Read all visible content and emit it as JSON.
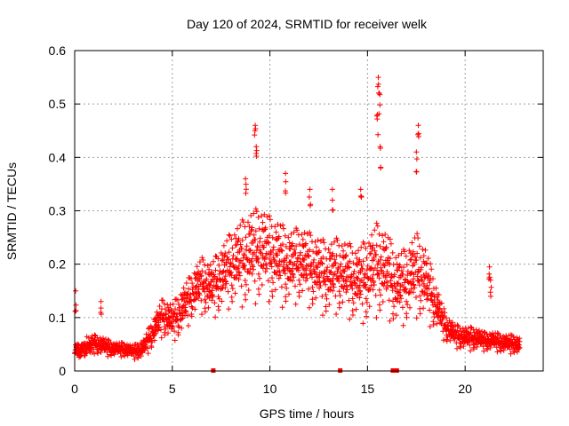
{
  "chart_data": {
    "type": "scatter",
    "title": "Day 120 of 2024, SRMTID for receiver welk",
    "xlabel": "GPS time / hours",
    "ylabel": "SRMTID / TECUs",
    "xlim": [
      0,
      24
    ],
    "ylim": [
      0,
      0.6
    ],
    "xticks": [
      "0",
      "5",
      "10",
      "15",
      "20"
    ],
    "yticks": [
      "0",
      "0.1",
      "0.2",
      "0.3",
      "0.4",
      "0.5",
      "0.6"
    ],
    "grid": true,
    "marker": "+",
    "series_color": "#ff0000",
    "gap_markers_x": [
      7.1,
      13.6,
      16.3,
      16.5
    ],
    "series": [
      {
        "name": "SRMTID",
        "envelope_x": [
          0,
          0.5,
          1,
          1.5,
          2,
          2.5,
          3,
          3.5,
          4,
          4.5,
          5,
          5.5,
          6,
          6.5,
          7,
          7.5,
          8,
          8.5,
          9,
          9.5,
          10,
          10.5,
          11,
          11.5,
          12,
          12.5,
          13,
          13.5,
          14,
          14.5,
          15,
          15.5,
          16,
          16.5,
          17,
          17.5,
          18,
          18.5,
          19,
          19.5,
          20,
          20.5,
          21,
          21.5,
          22,
          22.5,
          22.8
        ],
        "envelope_median": [
          0.04,
          0.045,
          0.05,
          0.045,
          0.04,
          0.04,
          0.035,
          0.04,
          0.07,
          0.1,
          0.09,
          0.11,
          0.14,
          0.16,
          0.15,
          0.17,
          0.19,
          0.2,
          0.21,
          0.22,
          0.21,
          0.2,
          0.19,
          0.2,
          0.19,
          0.18,
          0.17,
          0.18,
          0.17,
          0.16,
          0.17,
          0.19,
          0.18,
          0.15,
          0.16,
          0.18,
          0.16,
          0.12,
          0.08,
          0.065,
          0.06,
          0.06,
          0.055,
          0.055,
          0.05,
          0.05,
          0.045
        ],
        "envelope_spread": [
          0.02,
          0.02,
          0.02,
          0.02,
          0.015,
          0.015,
          0.015,
          0.02,
          0.03,
          0.04,
          0.04,
          0.05,
          0.05,
          0.06,
          0.06,
          0.07,
          0.08,
          0.09,
          0.1,
          0.1,
          0.09,
          0.09,
          0.08,
          0.08,
          0.08,
          0.08,
          0.08,
          0.08,
          0.08,
          0.08,
          0.09,
          0.1,
          0.09,
          0.08,
          0.08,
          0.09,
          0.08,
          0.05,
          0.03,
          0.025,
          0.025,
          0.025,
          0.02,
          0.02,
          0.02,
          0.02,
          0.02
        ],
        "peaks": [
          {
            "x": 0.05,
            "y": 0.15
          },
          {
            "x": 1.35,
            "y": 0.13
          },
          {
            "x": 8.75,
            "y": 0.36
          },
          {
            "x": 9.25,
            "y": 0.46
          },
          {
            "x": 9.3,
            "y": 0.42
          },
          {
            "x": 10.8,
            "y": 0.37
          },
          {
            "x": 12.05,
            "y": 0.34
          },
          {
            "x": 13.2,
            "y": 0.34
          },
          {
            "x": 14.65,
            "y": 0.34
          },
          {
            "x": 15.55,
            "y": 0.55
          },
          {
            "x": 15.6,
            "y": 0.52
          },
          {
            "x": 15.5,
            "y": 0.48
          },
          {
            "x": 15.65,
            "y": 0.42
          },
          {
            "x": 17.6,
            "y": 0.46
          },
          {
            "x": 17.5,
            "y": 0.41
          },
          {
            "x": 21.25,
            "y": 0.195
          },
          {
            "x": 21.3,
            "y": 0.17
          }
        ]
      }
    ]
  }
}
